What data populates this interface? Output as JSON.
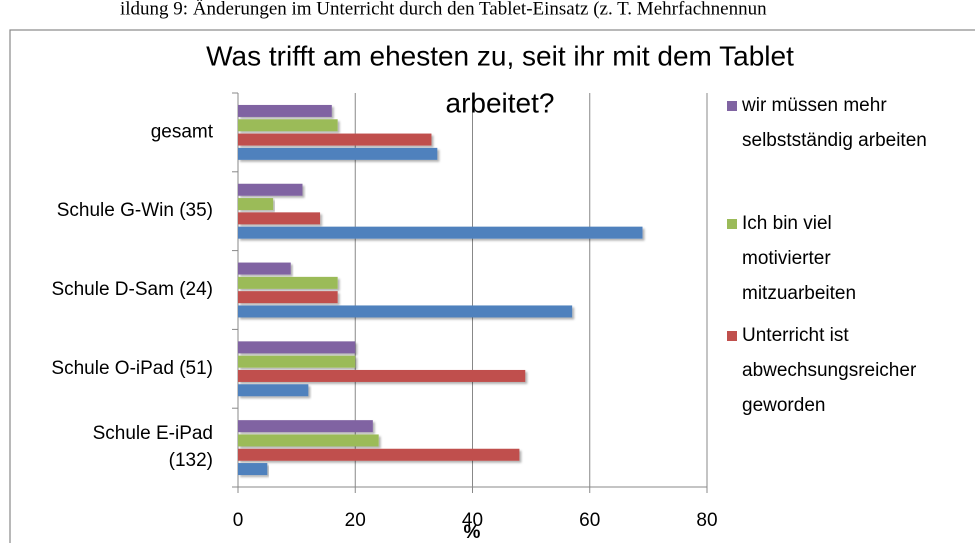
{
  "caption": "ildung 9: Änderungen im Unterricht durch den Tablet-Einsatz (z. T. Mehrfachnennun",
  "chart_data": {
    "type": "hbar",
    "title": [
      "Was trifft am ehesten zu, seit ihr mit dem Tablet",
      "arbeitet?"
    ],
    "x_label": "%",
    "categories": [
      "gesamt",
      "Schule G-Win (35)",
      "Schule D-Sam (24)",
      "Schule O-iPad (51)",
      "Schule E-iPad\n(132)"
    ],
    "series": [
      {
        "name": "wir müssen mehr selbstständig arbeiten",
        "color": "#8064a2",
        "values": [
          16,
          11,
          9,
          20,
          23
        ]
      },
      {
        "name": "Ich bin viel motivierter mitzuarbeiten",
        "color": "#9bbb59",
        "values": [
          17,
          6,
          17,
          20,
          24
        ]
      },
      {
        "name": "Unterricht ist abwechsungsreicher geworden",
        "color": "#c0504d",
        "values": [
          33,
          14,
          17,
          49,
          48
        ]
      },
      {
        "name": null,
        "color": "#4f81bd",
        "values": [
          34,
          69,
          57,
          12,
          5
        ]
      }
    ],
    "xlim": [
      0,
      80
    ],
    "xticks": [
      0,
      20,
      40,
      60,
      80
    ],
    "grid": true,
    "legend": "right"
  }
}
